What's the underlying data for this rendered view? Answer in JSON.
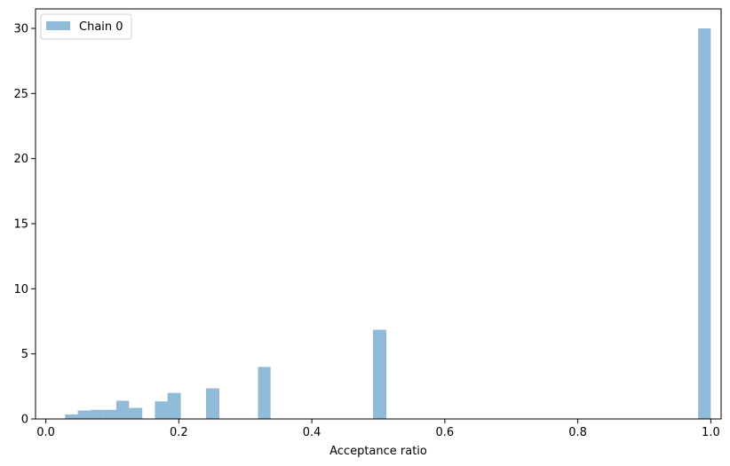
{
  "chart_data": {
    "type": "bar",
    "xlabel": "Acceptance ratio",
    "ylabel": "",
    "xlim": [
      -0.0155,
      1.0155
    ],
    "ylim": [
      0,
      31.5
    ],
    "xticks": [
      0.0,
      0.2,
      0.4,
      0.6,
      0.8,
      1.0
    ],
    "xtick_labels": [
      "0.0",
      "0.2",
      "0.4",
      "0.6",
      "0.8",
      "1.0"
    ],
    "yticks": [
      0,
      5,
      10,
      15,
      20,
      25,
      30
    ],
    "ytick_labels": [
      "0",
      "5",
      "10",
      "15",
      "20",
      "25",
      "30"
    ],
    "bin_width": 0.0193,
    "series": [
      {
        "name": "Chain 0",
        "color": "#1f77b4",
        "opacity": 0.5,
        "bins": [
          {
            "x0": 0.029,
            "x1": 0.048,
            "value": 0.35
          },
          {
            "x0": 0.048,
            "x1": 0.067,
            "value": 0.65
          },
          {
            "x0": 0.067,
            "x1": 0.087,
            "value": 0.7
          },
          {
            "x0": 0.087,
            "x1": 0.106,
            "value": 0.7
          },
          {
            "x0": 0.106,
            "x1": 0.125,
            "value": 1.4
          },
          {
            "x0": 0.125,
            "x1": 0.145,
            "value": 0.85
          },
          {
            "x0": 0.164,
            "x1": 0.183,
            "value": 1.35
          },
          {
            "x0": 0.183,
            "x1": 0.203,
            "value": 2.0
          },
          {
            "x0": 0.241,
            "x1": 0.261,
            "value": 2.35
          },
          {
            "x0": 0.319,
            "x1": 0.338,
            "value": 4.0
          },
          {
            "x0": 0.492,
            "x1": 0.512,
            "value": 6.85
          },
          {
            "x0": 0.981,
            "x1": 1.0,
            "value": 30.0
          }
        ]
      }
    ],
    "legend": {
      "position": "top-left"
    },
    "grid": false
  }
}
